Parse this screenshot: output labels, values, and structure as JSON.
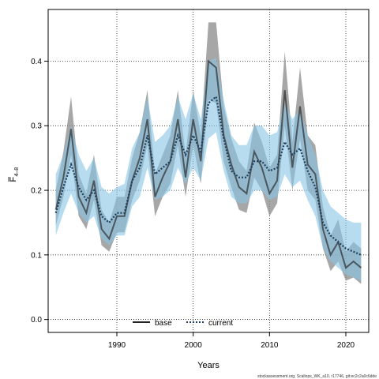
{
  "chart_data": {
    "type": "line",
    "xlabel": "Years",
    "ylabel_main": "F",
    "ylabel_sub": "4–8",
    "xlim": [
      1981,
      2023
    ],
    "ylim": [
      -0.02,
      0.48
    ],
    "x_ticks": [
      1990,
      2000,
      2010,
      2020
    ],
    "y_ticks": [
      0.0,
      0.1,
      0.2,
      0.3,
      0.4
    ],
    "y_tick_labels": [
      "0.0",
      "0.1",
      "0.2",
      "0.3",
      "0.4"
    ],
    "grid": true,
    "legend_position": "bottom-center",
    "x": [
      1982,
      1983,
      1984,
      1985,
      1986,
      1987,
      1988,
      1989,
      1990,
      1991,
      1992,
      1993,
      1994,
      1995,
      1996,
      1997,
      1998,
      1999,
      2000,
      2001,
      2002,
      2003,
      2004,
      2005,
      2006,
      2007,
      2008,
      2009,
      2010,
      2011,
      2012,
      2013,
      2014,
      2015,
      2016,
      2017,
      2018,
      2019,
      2020,
      2021,
      2022
    ],
    "series": [
      {
        "name": "base",
        "color": "#222222",
        "band_color": "#8a8a8a",
        "values": [
          0.17,
          0.22,
          0.295,
          0.19,
          0.165,
          0.215,
          0.14,
          0.125,
          0.16,
          0.16,
          0.215,
          0.25,
          0.31,
          0.19,
          0.22,
          0.245,
          0.31,
          0.22,
          0.31,
          0.245,
          0.4,
          0.39,
          0.285,
          0.24,
          0.205,
          0.195,
          0.26,
          0.235,
          0.195,
          0.215,
          0.355,
          0.235,
          0.33,
          0.24,
          0.225,
          0.14,
          0.1,
          0.12,
          0.08,
          0.09,
          0.08
        ],
        "lower": [
          0.145,
          0.19,
          0.255,
          0.16,
          0.14,
          0.185,
          0.115,
          0.105,
          0.135,
          0.135,
          0.185,
          0.215,
          0.27,
          0.16,
          0.19,
          0.21,
          0.27,
          0.19,
          0.27,
          0.21,
          0.34,
          0.335,
          0.245,
          0.205,
          0.17,
          0.165,
          0.22,
          0.2,
          0.16,
          0.18,
          0.3,
          0.2,
          0.28,
          0.2,
          0.185,
          0.11,
          0.075,
          0.09,
          0.06,
          0.065,
          0.055
        ],
        "upper": [
          0.2,
          0.26,
          0.345,
          0.225,
          0.195,
          0.255,
          0.17,
          0.15,
          0.19,
          0.19,
          0.25,
          0.29,
          0.355,
          0.225,
          0.255,
          0.285,
          0.355,
          0.255,
          0.355,
          0.285,
          0.46,
          0.46,
          0.33,
          0.28,
          0.245,
          0.23,
          0.305,
          0.275,
          0.235,
          0.255,
          0.415,
          0.275,
          0.39,
          0.285,
          0.27,
          0.175,
          0.13,
          0.155,
          0.105,
          0.12,
          0.11
        ]
      },
      {
        "name": "current",
        "color": "#1f3f5f",
        "band_color": "#87c4e6",
        "values": [
          0.165,
          0.205,
          0.24,
          0.205,
          0.185,
          0.2,
          0.16,
          0.15,
          0.165,
          0.165,
          0.215,
          0.235,
          0.285,
          0.225,
          0.235,
          0.245,
          0.285,
          0.255,
          0.285,
          0.26,
          0.335,
          0.345,
          0.28,
          0.23,
          0.22,
          0.22,
          0.245,
          0.245,
          0.23,
          0.235,
          0.275,
          0.255,
          0.265,
          0.23,
          0.205,
          0.15,
          0.13,
          0.12,
          0.11,
          0.105,
          0.1
        ],
        "lower": [
          0.13,
          0.165,
          0.195,
          0.165,
          0.15,
          0.16,
          0.125,
          0.115,
          0.13,
          0.13,
          0.175,
          0.19,
          0.235,
          0.185,
          0.19,
          0.2,
          0.235,
          0.21,
          0.235,
          0.215,
          0.28,
          0.29,
          0.23,
          0.19,
          0.18,
          0.18,
          0.2,
          0.2,
          0.185,
          0.19,
          0.225,
          0.205,
          0.215,
          0.185,
          0.16,
          0.11,
          0.09,
          0.08,
          0.07,
          0.065,
          0.06
        ],
        "upper": [
          0.225,
          0.255,
          0.3,
          0.255,
          0.23,
          0.25,
          0.205,
          0.195,
          0.205,
          0.21,
          0.265,
          0.29,
          0.345,
          0.275,
          0.285,
          0.3,
          0.345,
          0.31,
          0.35,
          0.31,
          0.4,
          0.405,
          0.34,
          0.285,
          0.27,
          0.27,
          0.3,
          0.3,
          0.285,
          0.29,
          0.335,
          0.31,
          0.325,
          0.285,
          0.255,
          0.2,
          0.175,
          0.165,
          0.155,
          0.15,
          0.15
        ]
      }
    ],
    "footer": "stockassessment.org, Scallops_WK_a10, r17746, git:ec2c2a0c6dde"
  }
}
